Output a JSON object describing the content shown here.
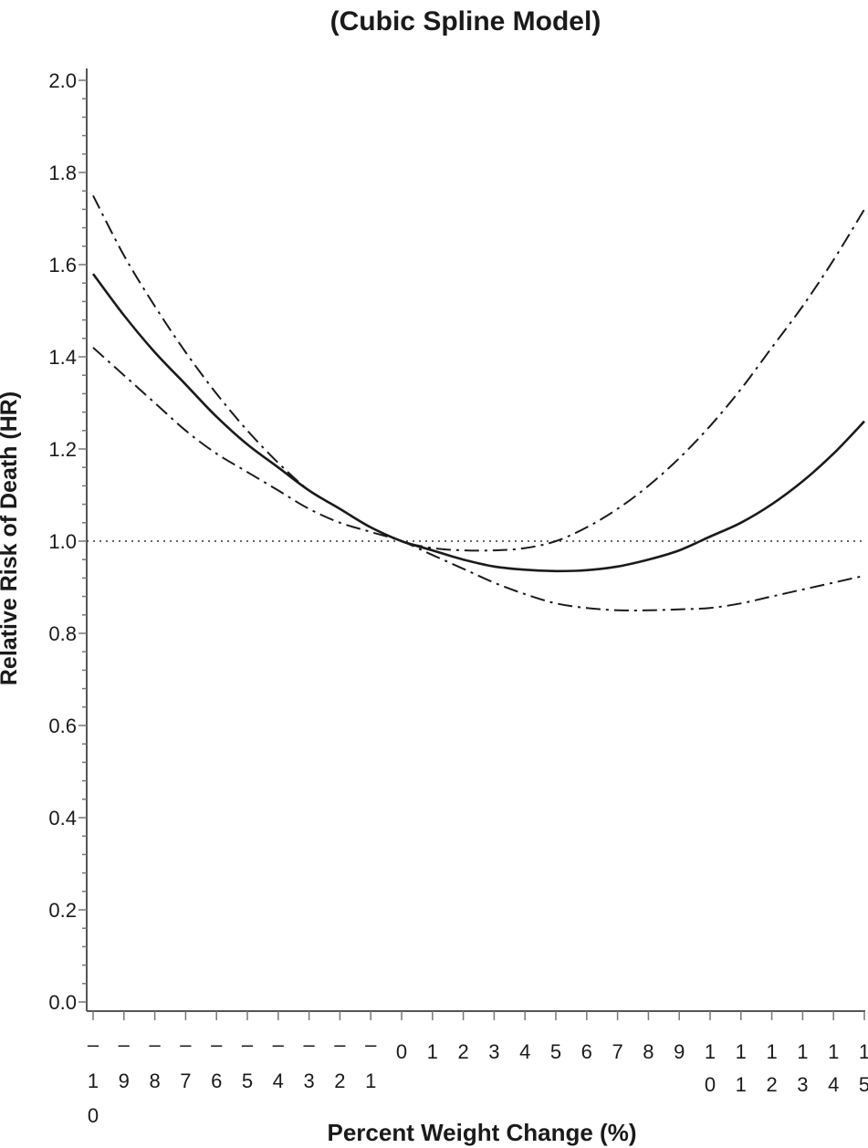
{
  "chart_data": {
    "type": "line",
    "title": "(Cubic Spline Model)",
    "xlabel": "Percent Weight Change (%)",
    "ylabel": "Relative Risk of Death (HR)",
    "ylim": [
      0.0,
      2.0
    ],
    "xlim": [
      -10,
      15
    ],
    "yticks": [
      "0.0",
      "0.2",
      "0.4",
      "0.6",
      "0.8",
      "1.0",
      "1.2",
      "1.4",
      "1.6",
      "1.8",
      "2.0"
    ],
    "xtick_labels": [
      {
        "x": -10,
        "lines": [
          "–",
          "1",
          "0"
        ]
      },
      {
        "x": -9,
        "lines": [
          "–",
          "9"
        ]
      },
      {
        "x": -8,
        "lines": [
          "–",
          "8"
        ]
      },
      {
        "x": -7,
        "lines": [
          "–",
          "7"
        ]
      },
      {
        "x": -6,
        "lines": [
          "–",
          "6"
        ]
      },
      {
        "x": -5,
        "lines": [
          "–",
          "5"
        ]
      },
      {
        "x": -4,
        "lines": [
          "–",
          "4"
        ]
      },
      {
        "x": -3,
        "lines": [
          "–",
          "3"
        ]
      },
      {
        "x": -2,
        "lines": [
          "–",
          "2"
        ]
      },
      {
        "x": -1,
        "lines": [
          "–",
          "1"
        ]
      },
      {
        "x": 0,
        "lines": [
          "0"
        ]
      },
      {
        "x": 1,
        "lines": [
          "1"
        ]
      },
      {
        "x": 2,
        "lines": [
          "2"
        ]
      },
      {
        "x": 3,
        "lines": [
          "3"
        ]
      },
      {
        "x": 4,
        "lines": [
          "4"
        ]
      },
      {
        "x": 5,
        "lines": [
          "5"
        ]
      },
      {
        "x": 6,
        "lines": [
          "6"
        ]
      },
      {
        "x": 7,
        "lines": [
          "7"
        ]
      },
      {
        "x": 8,
        "lines": [
          "8"
        ]
      },
      {
        "x": 9,
        "lines": [
          "9"
        ]
      },
      {
        "x": 10,
        "lines": [
          "1",
          "0"
        ]
      },
      {
        "x": 11,
        "lines": [
          "1",
          "1"
        ]
      },
      {
        "x": 12,
        "lines": [
          "1",
          "2"
        ]
      },
      {
        "x": 13,
        "lines": [
          "1",
          "3"
        ]
      },
      {
        "x": 14,
        "lines": [
          "1",
          "4"
        ]
      },
      {
        "x": 15,
        "lines": [
          "1",
          "5"
        ]
      }
    ],
    "reference_line": {
      "y": 1.0,
      "style": "dotted"
    },
    "series": [
      {
        "style": "solid",
        "x": [
          -10,
          -9,
          -8,
          -7,
          -6,
          -5,
          -4,
          -3,
          -2,
          -1,
          0,
          1,
          2,
          3,
          4,
          5,
          6,
          7,
          8,
          9,
          10,
          11,
          12,
          13,
          14,
          15
        ],
        "y": [
          1.58,
          1.49,
          1.41,
          1.34,
          1.27,
          1.21,
          1.16,
          1.11,
          1.07,
          1.03,
          1.0,
          0.98,
          0.96,
          0.945,
          0.938,
          0.935,
          0.937,
          0.945,
          0.96,
          0.98,
          1.01,
          1.04,
          1.08,
          1.13,
          1.19,
          1.26
        ]
      },
      {
        "style": "dash-dot",
        "x": [
          -10,
          -9,
          -8,
          -7,
          -6,
          -5,
          -4,
          -3,
          -2,
          -1,
          0,
          1,
          2,
          3,
          4,
          5,
          6,
          7,
          8,
          9,
          10,
          11,
          12,
          13,
          14,
          15
        ],
        "y": [
          1.75,
          1.62,
          1.51,
          1.41,
          1.32,
          1.24,
          1.17,
          1.11,
          1.07,
          1.03,
          1.0,
          0.985,
          0.98,
          0.98,
          0.985,
          1.0,
          1.03,
          1.07,
          1.12,
          1.18,
          1.25,
          1.33,
          1.42,
          1.51,
          1.61,
          1.72
        ]
      },
      {
        "style": "dash-dot",
        "x": [
          -10,
          -9,
          -8,
          -7,
          -6,
          -5,
          -4,
          -3,
          -2,
          -1,
          0,
          1,
          2,
          3,
          4,
          5,
          6,
          7,
          8,
          9,
          10,
          11,
          12,
          13,
          14,
          15
        ],
        "y": [
          1.42,
          1.36,
          1.3,
          1.24,
          1.19,
          1.15,
          1.11,
          1.07,
          1.04,
          1.02,
          1.0,
          0.97,
          0.94,
          0.91,
          0.885,
          0.865,
          0.855,
          0.85,
          0.85,
          0.852,
          0.855,
          0.865,
          0.88,
          0.895,
          0.91,
          0.925
        ]
      }
    ]
  }
}
